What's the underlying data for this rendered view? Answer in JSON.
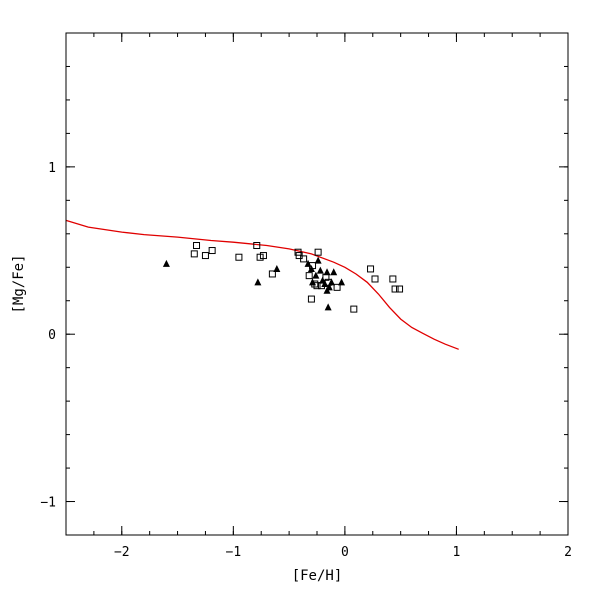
{
  "chart_data": {
    "type": "scatter",
    "title": "",
    "xlabel": "[Fe/H]",
    "ylabel": "[Mg/Fe]",
    "xlim": [
      -2.5,
      2.0
    ],
    "ylim": [
      -1.2,
      1.8
    ],
    "x_ticks": [
      {
        "value": -2,
        "label": "−2"
      },
      {
        "value": -1,
        "label": "−1"
      },
      {
        "value": 0,
        "label": "0"
      },
      {
        "value": 1,
        "label": "1"
      },
      {
        "value": 2,
        "label": "2"
      }
    ],
    "y_ticks": [
      {
        "value": -1,
        "label": "−1"
      },
      {
        "value": 0,
        "label": "0"
      },
      {
        "value": 1,
        "label": "1"
      }
    ],
    "minor_tick_step_x": 0.25,
    "minor_tick_step_y": 0.2,
    "grid": false,
    "legend": "none",
    "series": [
      {
        "marker": "open-square",
        "color": "#000000",
        "points": [
          {
            "x": -1.33,
            "y": 0.53
          },
          {
            "x": -1.35,
            "y": 0.48
          },
          {
            "x": -1.25,
            "y": 0.47
          },
          {
            "x": -1.19,
            "y": 0.5
          },
          {
            "x": -0.95,
            "y": 0.46
          },
          {
            "x": -0.79,
            "y": 0.53
          },
          {
            "x": -0.76,
            "y": 0.46
          },
          {
            "x": -0.73,
            "y": 0.47
          },
          {
            "x": -0.65,
            "y": 0.36
          },
          {
            "x": -0.42,
            "y": 0.49
          },
          {
            "x": -0.41,
            "y": 0.47
          },
          {
            "x": -0.37,
            "y": 0.45
          },
          {
            "x": -0.32,
            "y": 0.35
          },
          {
            "x": -0.29,
            "y": 0.41
          },
          {
            "x": -0.27,
            "y": 0.3
          },
          {
            "x": -0.3,
            "y": 0.21
          },
          {
            "x": -0.25,
            "y": 0.29
          },
          {
            "x": -0.24,
            "y": 0.49
          },
          {
            "x": -0.21,
            "y": 0.29
          },
          {
            "x": -0.17,
            "y": 0.34
          },
          {
            "x": -0.15,
            "y": 0.31
          },
          {
            "x": -0.07,
            "y": 0.28
          },
          {
            "x": 0.08,
            "y": 0.15
          },
          {
            "x": 0.23,
            "y": 0.39
          },
          {
            "x": 0.27,
            "y": 0.33
          },
          {
            "x": 0.43,
            "y": 0.33
          },
          {
            "x": 0.45,
            "y": 0.27
          },
          {
            "x": 0.49,
            "y": 0.27
          }
        ]
      },
      {
        "marker": "filled-triangle",
        "color": "#000000",
        "points": [
          {
            "x": -1.6,
            "y": 0.42
          },
          {
            "x": -0.78,
            "y": 0.31
          },
          {
            "x": -0.61,
            "y": 0.39
          },
          {
            "x": -0.33,
            "y": 0.42
          },
          {
            "x": -0.3,
            "y": 0.39
          },
          {
            "x": -0.29,
            "y": 0.31
          },
          {
            "x": -0.26,
            "y": 0.35
          },
          {
            "x": -0.24,
            "y": 0.44
          },
          {
            "x": -0.22,
            "y": 0.38
          },
          {
            "x": -0.2,
            "y": 0.32
          },
          {
            "x": -0.18,
            "y": 0.3
          },
          {
            "x": -0.16,
            "y": 0.37
          },
          {
            "x": -0.14,
            "y": 0.28
          },
          {
            "x": -0.12,
            "y": 0.31
          },
          {
            "x": -0.1,
            "y": 0.37
          },
          {
            "x": -0.16,
            "y": 0.26
          },
          {
            "x": -0.15,
            "y": 0.16
          },
          {
            "x": -0.03,
            "y": 0.31
          }
        ]
      },
      {
        "type": "line",
        "color": "#e00000",
        "points": [
          {
            "x": -2.5,
            "y": 0.68
          },
          {
            "x": -2.3,
            "y": 0.64
          },
          {
            "x": -2.0,
            "y": 0.61
          },
          {
            "x": -1.8,
            "y": 0.595
          },
          {
            "x": -1.5,
            "y": 0.58
          },
          {
            "x": -1.2,
            "y": 0.56
          },
          {
            "x": -1.0,
            "y": 0.55
          },
          {
            "x": -0.7,
            "y": 0.53
          },
          {
            "x": -0.5,
            "y": 0.51
          },
          {
            "x": -0.3,
            "y": 0.48
          },
          {
            "x": -0.1,
            "y": 0.43
          },
          {
            "x": 0.0,
            "y": 0.4
          },
          {
            "x": 0.1,
            "y": 0.36
          },
          {
            "x": 0.2,
            "y": 0.31
          },
          {
            "x": 0.3,
            "y": 0.24
          },
          {
            "x": 0.4,
            "y": 0.16
          },
          {
            "x": 0.5,
            "y": 0.09
          },
          {
            "x": 0.6,
            "y": 0.04
          },
          {
            "x": 0.7,
            "y": 0.005
          },
          {
            "x": 0.8,
            "y": -0.03
          },
          {
            "x": 0.9,
            "y": -0.06
          },
          {
            "x": 1.02,
            "y": -0.09
          }
        ]
      }
    ]
  }
}
